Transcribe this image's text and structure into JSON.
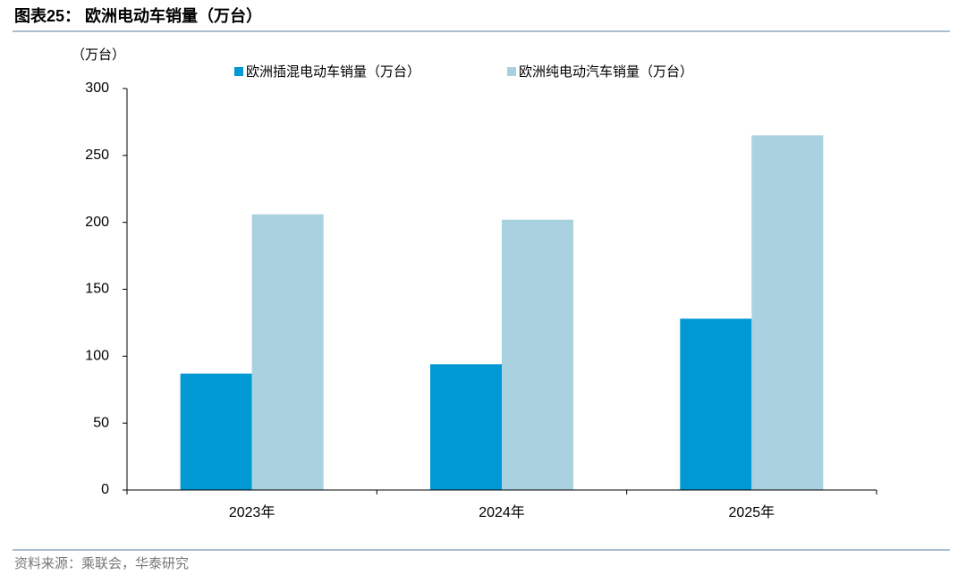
{
  "chart_data": {
    "type": "bar",
    "title": "图表25： 欧洲电动车销量（万台）",
    "y_label": "（万台）",
    "categories": [
      "2023年",
      "2024年",
      "2025年"
    ],
    "series": [
      {
        "name": "欧洲插混电动车销量（万台）",
        "color": "#0099d4",
        "values": [
          87,
          94,
          128
        ]
      },
      {
        "name": "欧洲纯电动汽车销量（万台）",
        "color": "#a9d1e0",
        "values": [
          206,
          202,
          265
        ]
      }
    ],
    "ylim": [
      0,
      300
    ],
    "yticks": [
      0,
      50,
      100,
      150,
      200,
      250,
      300
    ],
    "source": "资料来源：乘联会，华泰研究"
  }
}
